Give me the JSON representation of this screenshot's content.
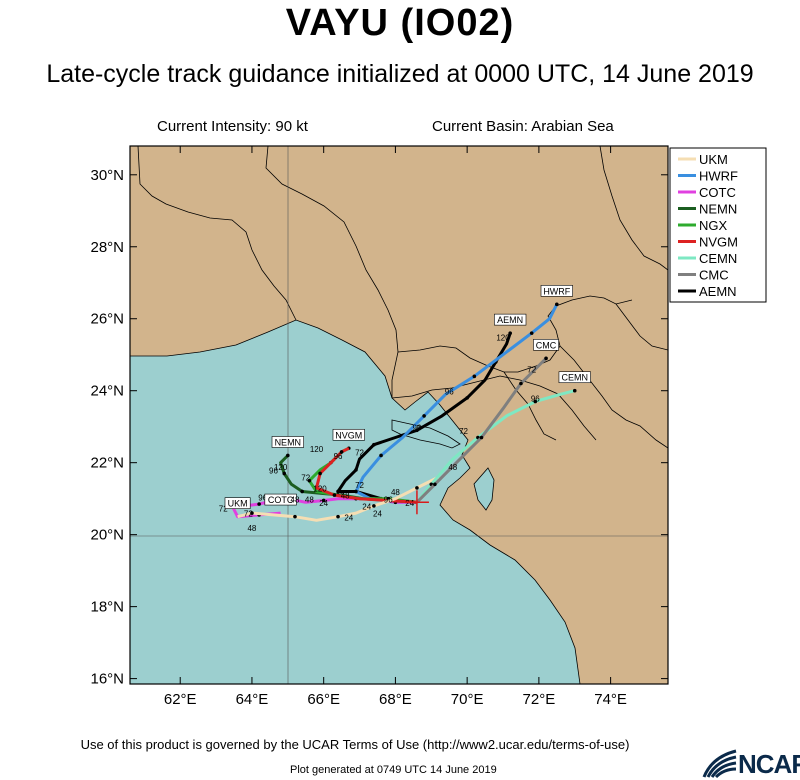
{
  "title": "VAYU (IO02)",
  "subtitle": "Late-cycle track guidance initialized at 0000 UTC, 14 June 2019",
  "current_intensity": "Current Intensity: 90 kt",
  "current_basin": "Current Basin: Arabian Sea",
  "colors": {
    "land": "#d2b48c",
    "sea": "#9ccfcf",
    "border": "#000000"
  },
  "lat_ticks": [
    "16°N",
    "18°N",
    "20°N",
    "22°N",
    "24°N",
    "26°N",
    "28°N",
    "30°N"
  ],
  "lon_ticks": [
    "62°E",
    "64°E",
    "66°E",
    "68°E",
    "70°E",
    "72°E",
    "74°E"
  ],
  "legend": [
    {
      "name": "UKM",
      "color": "#f5deb3"
    },
    {
      "name": "HWRF",
      "color": "#3a8fe0"
    },
    {
      "name": "COTC",
      "color": "#e040e0"
    },
    {
      "name": "NEMN",
      "color": "#1b5e20"
    },
    {
      "name": "NGX",
      "color": "#2eab2e"
    },
    {
      "name": "NVGM",
      "color": "#dd2222"
    },
    {
      "name": "CEMN",
      "color": "#7ee8c3"
    },
    {
      "name": "CMC",
      "color": "#7f7f7f"
    },
    {
      "name": "AEMN",
      "color": "#000000"
    }
  ],
  "tracks": [
    {
      "name": "AEMN",
      "color": "#000000",
      "label": "AEMN",
      "points": [
        [
          68.6,
          20.9
        ],
        [
          67.6,
          21.0
        ],
        [
          66.9,
          21.2
        ],
        [
          66.4,
          21.2
        ],
        [
          66.6,
          21.5
        ],
        [
          66.9,
          21.8
        ],
        [
          67.0,
          22.1
        ],
        [
          67.4,
          22.5
        ],
        [
          68.0,
          22.7
        ],
        [
          68.6,
          22.9
        ],
        [
          69.3,
          23.3
        ],
        [
          70.0,
          23.8
        ],
        [
          70.5,
          24.3
        ],
        [
          70.8,
          24.8
        ],
        [
          71.1,
          25.3
        ],
        [
          71.2,
          25.6
        ]
      ],
      "hour_labels": [
        {
          "t": "72",
          "lon": 67.0,
          "lat": 22.2
        },
        {
          "t": "96",
          "lon": 68.6,
          "lat": 22.9
        },
        {
          "t": "120",
          "lon": 71.0,
          "lat": 25.4
        }
      ]
    },
    {
      "name": "HWRF",
      "color": "#3a8fe0",
      "label": "HWRF",
      "points": [
        [
          68.6,
          20.9
        ],
        [
          68.0,
          20.9
        ],
        [
          67.3,
          21.0
        ],
        [
          66.9,
          21.2
        ],
        [
          67.1,
          21.6
        ],
        [
          67.6,
          22.2
        ],
        [
          68.2,
          22.7
        ],
        [
          68.8,
          23.3
        ],
        [
          69.4,
          23.9
        ],
        [
          70.2,
          24.4
        ],
        [
          71.0,
          25.0
        ],
        [
          71.8,
          25.6
        ],
        [
          72.3,
          26.0
        ],
        [
          72.5,
          26.4
        ]
      ],
      "hour_labels": [
        {
          "t": "72",
          "lon": 67.0,
          "lat": 21.3
        },
        {
          "t": "96",
          "lon": 69.5,
          "lat": 23.9
        }
      ]
    },
    {
      "name": "COTC",
      "color": "#e040e0",
      "label": "COTC",
      "points": [
        [
          68.6,
          20.9
        ],
        [
          68.0,
          20.9
        ],
        [
          67.4,
          21.0
        ],
        [
          66.9,
          21.0
        ],
        [
          66.4,
          21.0
        ],
        [
          66.0,
          20.95
        ],
        [
          65.5,
          20.9
        ],
        [
          65.0,
          21.0
        ],
        [
          64.6,
          20.95
        ],
        [
          64.2,
          20.85
        ],
        [
          63.8,
          20.8
        ],
        [
          63.4,
          20.9
        ],
        [
          63.6,
          20.5
        ],
        [
          64.2,
          20.55
        ],
        [
          64.8,
          20.6
        ]
      ],
      "hour_labels": [
        {
          "t": "48",
          "lon": 65.6,
          "lat": 20.9
        },
        {
          "t": "72",
          "lon": 63.2,
          "lat": 20.65
        },
        {
          "t": "96",
          "lon": 64.3,
          "lat": 20.95
        }
      ]
    },
    {
      "name": "NEMN",
      "color": "#1b5e20",
      "label": "NEMN",
      "points": [
        [
          68.6,
          20.9
        ],
        [
          67.8,
          20.95
        ],
        [
          67.1,
          21.0
        ],
        [
          66.5,
          21.1
        ],
        [
          65.9,
          21.15
        ],
        [
          65.4,
          21.2
        ],
        [
          65.1,
          21.4
        ],
        [
          64.9,
          21.7
        ],
        [
          64.8,
          22.0
        ],
        [
          65.0,
          22.2
        ]
      ],
      "hour_labels": [
        {
          "t": "96",
          "lon": 64.6,
          "lat": 21.7
        },
        {
          "t": "120",
          "lon": 64.8,
          "lat": 21.8
        }
      ]
    },
    {
      "name": "NGX",
      "color": "#2eab2e",
      "label": "",
      "points": [
        [
          68.6,
          20.9
        ],
        [
          67.8,
          21.0
        ],
        [
          67.0,
          21.0
        ],
        [
          66.4,
          21.1
        ],
        [
          65.8,
          21.2
        ],
        [
          65.6,
          21.5
        ],
        [
          65.9,
          21.8
        ],
        [
          66.2,
          22.0
        ],
        [
          66.5,
          22.3
        ],
        [
          66.7,
          22.4
        ]
      ],
      "hour_labels": [
        {
          "t": "72",
          "lon": 65.5,
          "lat": 21.5
        }
      ]
    },
    {
      "name": "NVGM",
      "color": "#dd2222",
      "label": "NVGM",
      "points": [
        [
          68.6,
          20.9
        ],
        [
          67.8,
          20.95
        ],
        [
          67.0,
          21.0
        ],
        [
          66.3,
          21.1
        ],
        [
          65.8,
          21.3
        ],
        [
          65.9,
          21.7
        ],
        [
          66.2,
          22.0
        ],
        [
          66.5,
          22.3
        ],
        [
          66.7,
          22.4
        ]
      ],
      "hour_labels": [
        {
          "t": "96",
          "lon": 66.4,
          "lat": 22.1
        },
        {
          "t": "120",
          "lon": 65.8,
          "lat": 22.3
        }
      ]
    },
    {
      "name": "UKM",
      "color": "#f5deb3",
      "label": "UKM",
      "points": [
        [
          69.2,
          21.6
        ],
        [
          68.6,
          21.3
        ],
        [
          68.0,
          21.0
        ],
        [
          67.4,
          20.8
        ],
        [
          66.9,
          20.6
        ],
        [
          66.4,
          20.5
        ],
        [
          65.8,
          20.4
        ],
        [
          65.2,
          20.5
        ],
        [
          64.6,
          20.55
        ],
        [
          64.0,
          20.6
        ],
        [
          63.6,
          20.5
        ]
      ],
      "hour_labels": [
        {
          "t": "24",
          "lon": 66.7,
          "lat": 20.4
        },
        {
          "t": "48",
          "lon": 64.0,
          "lat": 20.1
        }
      ]
    },
    {
      "name": "CEMN",
      "color": "#7ee8c3",
      "label": "CEMN",
      "points": [
        [
          68.6,
          20.9
        ],
        [
          69.0,
          21.4
        ],
        [
          69.6,
          22.1
        ],
        [
          70.3,
          22.7
        ],
        [
          71.1,
          23.3
        ],
        [
          71.9,
          23.7
        ],
        [
          72.6,
          23.9
        ],
        [
          73.0,
          24.0
        ]
      ],
      "hour_labels": [
        {
          "t": "48",
          "lon": 69.6,
          "lat": 21.8
        },
        {
          "t": "72",
          "lon": 69.9,
          "lat": 22.8
        },
        {
          "t": "96",
          "lon": 71.9,
          "lat": 23.7
        }
      ]
    },
    {
      "name": "CMC",
      "color": "#7f7f7f",
      "label": "CMC",
      "points": [
        [
          68.6,
          20.9
        ],
        [
          69.1,
          21.4
        ],
        [
          69.7,
          22.0
        ],
        [
          70.4,
          22.7
        ],
        [
          71.0,
          23.5
        ],
        [
          71.5,
          24.2
        ],
        [
          72.0,
          24.7
        ],
        [
          72.2,
          24.9
        ]
      ],
      "hour_labels": [
        {
          "t": "72",
          "lon": 71.8,
          "lat": 24.5
        }
      ]
    }
  ],
  "extra_hour_labels": [
    {
      "t": "24",
      "lon": 67.2,
      "lat": 20.7
    },
    {
      "t": "24",
      "lon": 66.0,
      "lat": 20.8
    },
    {
      "t": "24",
      "lon": 67.5,
      "lat": 20.5
    },
    {
      "t": "24",
      "lon": 68.4,
      "lat": 20.8
    },
    {
      "t": "48",
      "lon": 68.0,
      "lat": 21.1
    },
    {
      "t": "96",
      "lon": 67.8,
      "lat": 20.9
    },
    {
      "t": "72",
      "lon": 63.9,
      "lat": 20.5
    },
    {
      "t": "48",
      "lon": 65.2,
      "lat": 20.9
    },
    {
      "t": "48",
      "lon": 66.6,
      "lat": 21.0
    },
    {
      "t": "120",
      "lon": 65.9,
      "lat": 21.2
    }
  ],
  "footer": "Use of this product is governed by the UCAR Terms of Use (http://www2.ucar.edu/terms-of-use)",
  "plot_generated": "Plot generated at 0749 UTC   14 June 2019",
  "ncar_logo": "NCAR"
}
